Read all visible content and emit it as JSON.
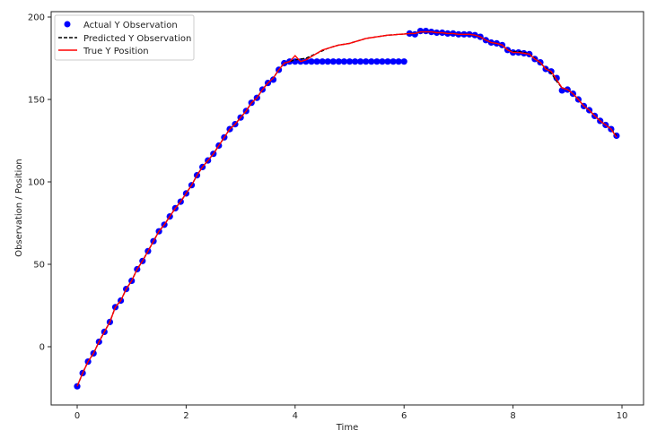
{
  "chart_data": {
    "type": "line",
    "title": "",
    "xlabel": "Time",
    "ylabel": "Observation / Position",
    "xlim": [
      -0.5,
      10.5
    ],
    "ylim": [
      -35,
      202
    ],
    "xticks": [
      0,
      2,
      4,
      6,
      8,
      10
    ],
    "yticks": [
      0,
      50,
      100,
      150,
      200
    ],
    "grid": false,
    "legend_position": "upper left",
    "legend": [
      "Actual Y Observation",
      "Predicted Y Observation",
      "True Y Position"
    ],
    "colors": {
      "actual": "#0000ff",
      "predicted": "#000000",
      "true": "#ff0000"
    },
    "x": [
      0.0,
      0.1,
      0.2,
      0.3,
      0.4,
      0.5,
      0.6,
      0.7,
      0.8,
      0.9,
      1.0,
      1.1,
      1.2,
      1.3,
      1.4,
      1.5,
      1.6,
      1.7,
      1.8,
      1.9,
      2.0,
      2.1,
      2.2,
      2.3,
      2.4,
      2.5,
      2.6,
      2.7,
      2.8,
      2.9,
      3.0,
      3.1,
      3.2,
      3.3,
      3.4,
      3.5,
      3.6,
      3.7,
      3.8,
      3.9,
      4.0,
      4.1,
      4.2,
      4.3,
      4.4,
      4.5,
      4.6,
      4.7,
      4.8,
      4.9,
      5.0,
      5.1,
      5.2,
      5.3,
      5.4,
      5.5,
      5.6,
      5.7,
      5.8,
      5.9,
      6.0,
      6.1,
      6.2,
      6.3,
      6.4,
      6.5,
      6.6,
      6.7,
      6.8,
      6.9,
      7.0,
      7.1,
      7.2,
      7.3,
      7.4,
      7.5,
      7.6,
      7.7,
      7.8,
      7.9,
      8.0,
      8.1,
      8.2,
      8.3,
      8.4,
      8.5,
      8.6,
      8.7,
      8.8,
      8.9,
      9.0,
      9.1,
      9.2,
      9.3,
      9.4,
      9.5,
      9.6,
      9.7,
      9.8,
      9.9
    ],
    "series": [
      {
        "name": "Actual Y Observation",
        "style": "markers",
        "values": [
          -24,
          -16,
          -9,
          -4,
          3,
          9,
          15,
          24,
          28,
          35,
          40,
          47,
          52,
          58,
          64,
          70,
          74,
          79,
          84,
          88,
          93,
          98,
          104,
          109,
          113,
          117,
          122,
          127,
          132,
          135,
          139,
          143,
          148,
          151,
          156,
          160,
          162,
          168,
          172,
          173,
          173,
          173,
          173,
          173,
          173,
          173,
          173,
          173,
          173,
          173,
          173,
          173,
          173,
          173,
          173,
          173,
          173,
          173,
          173,
          173,
          173,
          190,
          189.5,
          191.5,
          191.5,
          191,
          190.5,
          190.5,
          190,
          190,
          189.5,
          189.5,
          189.5,
          189,
          188,
          186,
          184.5,
          184,
          183,
          180,
          178.5,
          178.5,
          178,
          177.5,
          174.5,
          172.5,
          168.5,
          167,
          163,
          155.5,
          156,
          153.5,
          150,
          146,
          143.5,
          140,
          137,
          134.5,
          132,
          128
        ]
      },
      {
        "name": "Predicted Y Observation",
        "style": "dashed",
        "values": [
          -24,
          -16,
          -9,
          -4,
          3,
          9,
          15,
          24,
          28,
          35,
          40,
          47,
          52,
          58,
          64,
          70,
          74,
          79,
          84,
          88,
          93,
          98,
          104,
          109,
          113,
          117,
          122,
          127,
          132,
          135,
          139,
          143,
          148,
          151,
          156,
          160,
          163,
          168,
          172,
          173,
          174,
          174.5,
          175,
          176.5,
          178,
          179.5,
          181,
          182,
          183,
          183.5,
          184,
          185,
          186,
          187,
          187.5,
          188,
          188.5,
          189,
          189.2,
          189.5,
          189.7,
          190,
          190,
          191,
          191,
          191,
          190.5,
          190.5,
          190,
          190,
          189.5,
          189.5,
          189.5,
          189,
          188,
          186,
          184.5,
          184,
          183,
          180,
          179,
          179,
          178.5,
          177.5,
          175,
          172,
          169,
          166,
          161,
          157,
          156,
          153.5,
          150,
          146,
          143.5,
          140,
          137,
          134.5,
          132,
          128
        ]
      },
      {
        "name": "True Y Position",
        "style": "solid",
        "values": [
          -24,
          -16,
          -9,
          -4,
          3,
          9,
          15,
          24,
          28,
          35,
          40,
          47,
          52,
          58,
          64,
          70,
          74,
          79,
          84,
          88,
          93,
          98,
          104,
          109,
          113,
          117,
          122,
          127,
          132,
          135,
          139,
          143,
          148,
          151,
          156,
          160,
          163,
          168,
          172,
          173,
          176.5,
          173,
          174,
          176,
          178,
          180,
          181,
          182,
          183,
          183.5,
          184,
          185,
          186,
          187,
          187.5,
          188,
          188.5,
          189,
          189.2,
          189.5,
          189.7,
          190,
          190,
          191,
          191,
          191,
          190.5,
          190.5,
          190,
          190,
          189.5,
          189.5,
          189.5,
          189,
          188,
          186,
          184.5,
          184,
          183,
          180,
          178.5,
          178.5,
          178,
          177.5,
          174.5,
          172.5,
          168.5,
          167,
          162,
          157,
          156,
          153.5,
          150,
          146,
          143.5,
          140,
          137,
          134.5,
          132,
          127
        ]
      }
    ]
  }
}
